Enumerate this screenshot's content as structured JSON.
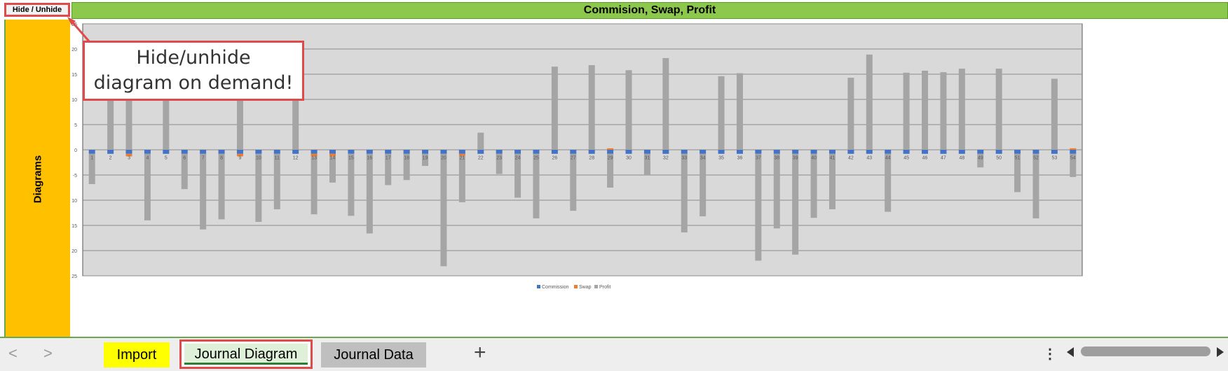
{
  "hide_button": {
    "label": "Hide / Unhide"
  },
  "header": {
    "title": "Commision, Swap, Profit"
  },
  "sidebar": {
    "label": "Diagrams"
  },
  "callout": {
    "line1": "Hide/unhide",
    "line2": "diagram on demand!"
  },
  "colors": {
    "commission": "#4472c4",
    "swap": "#ed7d31",
    "profit": "#a5a5a5",
    "plot_bg": "#d9d9d9",
    "gridline": "#8c8c8c",
    "title_bar": "#8cc84b",
    "sidebar": "#ffc000",
    "highlight": "#e04a4a"
  },
  "chart_data": {
    "type": "bar",
    "title": "",
    "ylim": [
      -25,
      25
    ],
    "yticks": [
      -25,
      -20,
      -15,
      -10,
      -5,
      0,
      5,
      10,
      15,
      20,
      25
    ],
    "grid": true,
    "legend_position": "bottom",
    "categories": [
      "1",
      "2",
      "3",
      "4",
      "5",
      "6",
      "7",
      "8",
      "9",
      "10",
      "11",
      "12",
      "13",
      "14",
      "15",
      "16",
      "17",
      "18",
      "19",
      "20",
      "21",
      "22",
      "23",
      "24",
      "25",
      "26",
      "27",
      "28",
      "29",
      "30",
      "31",
      "32",
      "33",
      "34",
      "35",
      "36",
      "37",
      "38",
      "39",
      "40",
      "41",
      "42",
      "43",
      "44",
      "45",
      "46",
      "47",
      "48",
      "49",
      "50",
      "51",
      "52",
      "53",
      "54"
    ],
    "series": [
      {
        "name": "Commission",
        "values": [
          -0.8,
          -0.8,
          -0.8,
          -0.8,
          -0.8,
          -0.8,
          -0.8,
          -0.8,
          -0.8,
          -0.8,
          -0.8,
          -0.8,
          -0.8,
          -0.8,
          -0.8,
          -0.8,
          -0.8,
          -0.8,
          -0.8,
          -0.8,
          -0.8,
          -0.8,
          -0.8,
          -0.8,
          -0.8,
          -0.8,
          -0.8,
          -0.8,
          -0.8,
          -0.8,
          -0.8,
          -0.8,
          -0.8,
          -0.8,
          -0.8,
          -0.8,
          -0.8,
          -0.8,
          -0.8,
          -0.8,
          -0.8,
          -0.8,
          -0.8,
          -0.8,
          -0.8,
          -0.8,
          -0.8,
          -0.8,
          -0.8,
          -0.8,
          -0.8,
          -0.8,
          -0.8,
          -0.8
        ]
      },
      {
        "name": "Swap",
        "values": [
          0,
          0,
          -0.5,
          0,
          0,
          0,
          0,
          0,
          -0.5,
          0,
          0,
          0,
          -0.5,
          -0.5,
          0,
          0,
          0,
          0,
          0,
          0,
          -0.4,
          0,
          0,
          0,
          0,
          0,
          0,
          0,
          0.3,
          0,
          0,
          0,
          0,
          0,
          0,
          0,
          0,
          0,
          0,
          0,
          0,
          0,
          0,
          0,
          0,
          0,
          0,
          0,
          0,
          0,
          0,
          0,
          0,
          0.3
        ]
      },
      {
        "name": "Profit",
        "values": [
          -6,
          13,
          12,
          -13.2,
          12,
          -7,
          -15,
          -13,
          13,
          -13.5,
          -11,
          14,
          -11.5,
          -5.2,
          -12.3,
          -15.8,
          -6.2,
          -5.2,
          -2.4,
          -22.3,
          -9.2,
          3.4,
          -4,
          -8.7,
          -12.8,
          16.5,
          -11.3,
          16.8,
          -6.7,
          15.8,
          -4.2,
          18.2,
          -15.6,
          -12.4,
          14.6,
          15.2,
          -21.2,
          -14.8,
          -20,
          -12.7,
          -11,
          14.3,
          18.9,
          -11.5,
          15.3,
          15.7,
          15.4,
          16.1,
          -2.7,
          16.1,
          -7.6,
          -12.8,
          14.1,
          -4.6
        ]
      }
    ]
  },
  "tabs": [
    {
      "label": "Import"
    },
    {
      "label": "Journal Diagram"
    },
    {
      "label": "Journal Data"
    }
  ],
  "tabbar": {
    "add": "+",
    "menu": "⋮",
    "prev": "<",
    "next": ">"
  }
}
